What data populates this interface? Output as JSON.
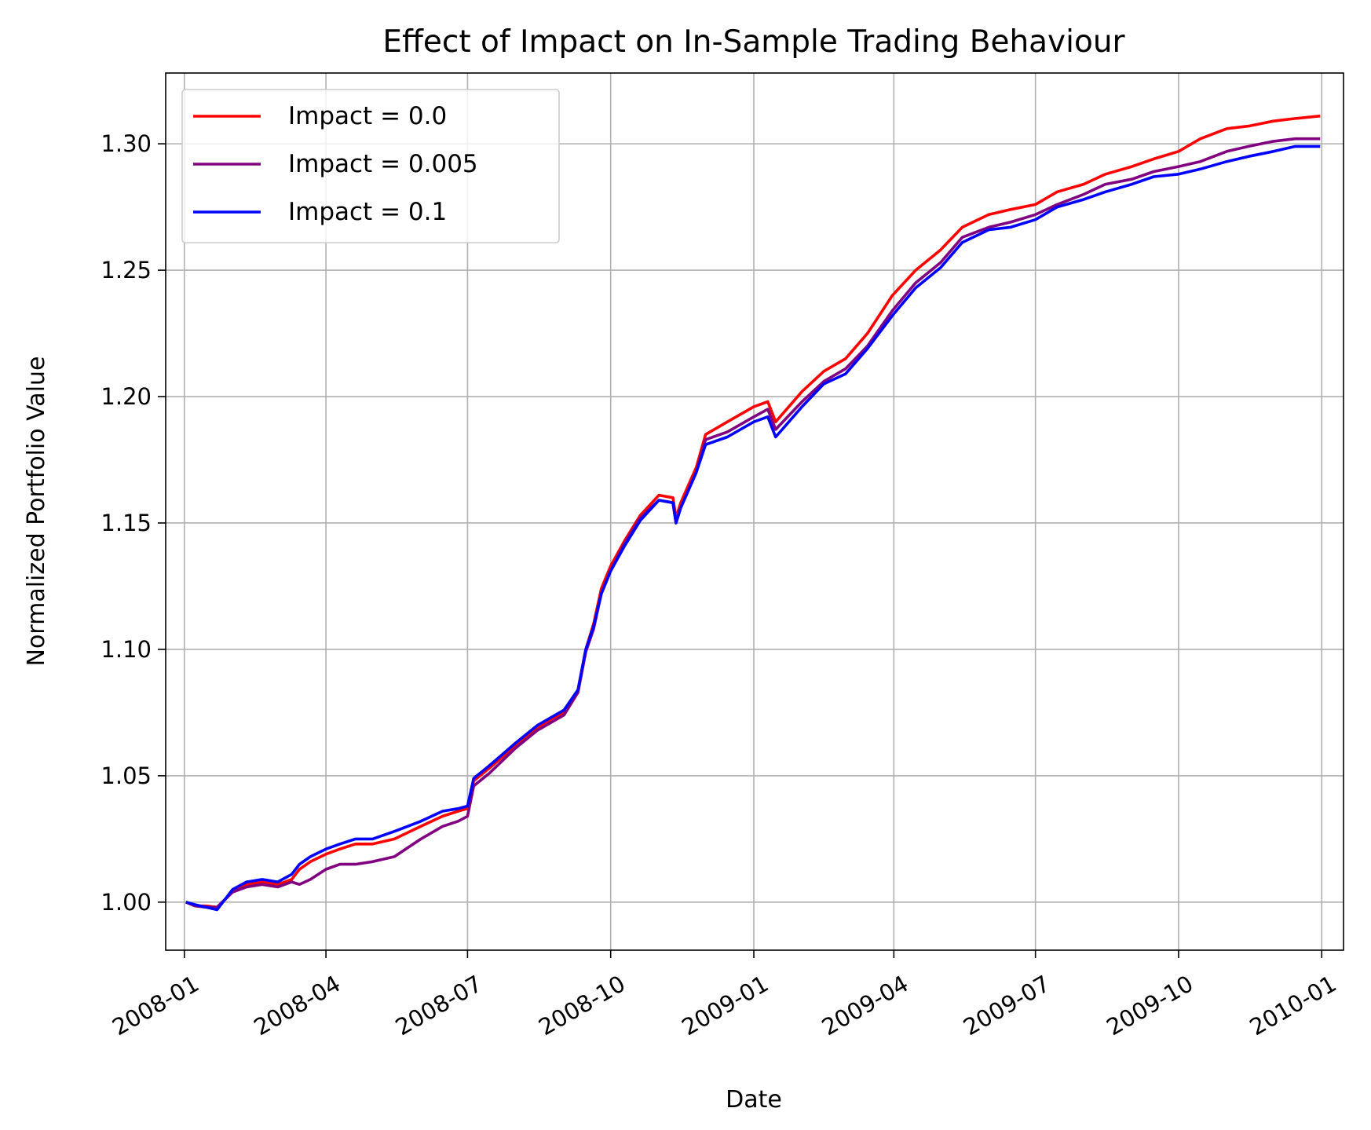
{
  "chart_data": {
    "type": "line",
    "title": "Effect of Impact on In-Sample Trading Behaviour",
    "xlabel": "Date",
    "ylabel": "Normalized Portfolio Value",
    "xlim": [
      "2007-12-20",
      "2010-01-15"
    ],
    "ylim": [
      0.981,
      1.328
    ],
    "x_ticks": [
      "2008-01",
      "2008-04",
      "2008-07",
      "2008-10",
      "2009-01",
      "2009-04",
      "2009-07",
      "2009-10",
      "2010-01"
    ],
    "x_tick_dates": [
      "2008-01-01",
      "2008-04-01",
      "2008-07-01",
      "2008-10-01",
      "2009-01-01",
      "2009-04-01",
      "2009-07-01",
      "2009-10-01",
      "2010-01-01"
    ],
    "x_tick_rotation": 30,
    "y_ticks": [
      "1.00",
      "1.05",
      "1.10",
      "1.15",
      "1.20",
      "1.25",
      "1.30"
    ],
    "y_tick_values": [
      1.0,
      1.05,
      1.1,
      1.15,
      1.2,
      1.25,
      1.3
    ],
    "grid": true,
    "legend_position": "top-left",
    "x": [
      "2008-01-02",
      "2008-01-08",
      "2008-01-15",
      "2008-01-22",
      "2008-02-01",
      "2008-02-10",
      "2008-02-20",
      "2008-03-01",
      "2008-03-10",
      "2008-03-15",
      "2008-03-22",
      "2008-04-01",
      "2008-04-10",
      "2008-04-20",
      "2008-05-01",
      "2008-05-15",
      "2008-06-01",
      "2008-06-15",
      "2008-06-25",
      "2008-07-01",
      "2008-07-05",
      "2008-07-15",
      "2008-08-01",
      "2008-08-15",
      "2008-09-01",
      "2008-09-10",
      "2008-09-15",
      "2008-09-20",
      "2008-09-25",
      "2008-10-01",
      "2008-10-10",
      "2008-10-20",
      "2008-11-01",
      "2008-11-10",
      "2008-11-12",
      "2008-11-15",
      "2008-11-25",
      "2008-12-01",
      "2008-12-15",
      "2009-01-01",
      "2009-01-10",
      "2009-01-15",
      "2009-02-01",
      "2009-02-15",
      "2009-03-01",
      "2009-03-15",
      "2009-03-31",
      "2009-04-15",
      "2009-05-01",
      "2009-05-15",
      "2009-06-01",
      "2009-06-15",
      "2009-07-01",
      "2009-07-15",
      "2009-08-01",
      "2009-08-15",
      "2009-09-01",
      "2009-09-15",
      "2009-10-01",
      "2009-10-15",
      "2009-11-01",
      "2009-11-15",
      "2009-12-01",
      "2009-12-15",
      "2009-12-31"
    ],
    "series": [
      {
        "name": "Impact = 0.0",
        "color": "#ff0000",
        "values": [
          1.0,
          0.9985,
          0.9985,
          0.998,
          1.004,
          1.007,
          1.008,
          1.007,
          1.009,
          1.013,
          1.016,
          1.019,
          1.021,
          1.023,
          1.023,
          1.025,
          1.03,
          1.034,
          1.036,
          1.037,
          1.048,
          1.053,
          1.062,
          1.069,
          1.075,
          1.084,
          1.1,
          1.11,
          1.124,
          1.133,
          1.143,
          1.153,
          1.161,
          1.16,
          1.152,
          1.158,
          1.172,
          1.185,
          1.19,
          1.196,
          1.198,
          1.19,
          1.202,
          1.21,
          1.215,
          1.225,
          1.24,
          1.25,
          1.258,
          1.267,
          1.272,
          1.274,
          1.276,
          1.281,
          1.284,
          1.288,
          1.291,
          1.294,
          1.297,
          1.302,
          1.306,
          1.307,
          1.309,
          1.31,
          1.311
        ]
      },
      {
        "name": "Impact = 0.005",
        "color": "#800080",
        "values": [
          1.0,
          0.9985,
          0.998,
          0.998,
          1.004,
          1.006,
          1.007,
          1.006,
          1.008,
          1.007,
          1.009,
          1.013,
          1.015,
          1.015,
          1.016,
          1.018,
          1.025,
          1.03,
          1.032,
          1.034,
          1.046,
          1.051,
          1.061,
          1.068,
          1.074,
          1.083,
          1.099,
          1.108,
          1.122,
          1.131,
          1.142,
          1.152,
          1.159,
          1.158,
          1.15,
          1.156,
          1.17,
          1.183,
          1.186,
          1.192,
          1.195,
          1.187,
          1.198,
          1.206,
          1.211,
          1.22,
          1.234,
          1.245,
          1.253,
          1.263,
          1.267,
          1.269,
          1.272,
          1.276,
          1.28,
          1.284,
          1.286,
          1.289,
          1.291,
          1.293,
          1.297,
          1.299,
          1.301,
          1.302,
          1.302
        ]
      },
      {
        "name": "Impact = 0.1",
        "color": "#0000ff",
        "values": [
          1.0,
          0.999,
          0.998,
          0.997,
          1.005,
          1.008,
          1.009,
          1.008,
          1.011,
          1.015,
          1.018,
          1.021,
          1.023,
          1.025,
          1.025,
          1.028,
          1.032,
          1.036,
          1.037,
          1.038,
          1.049,
          1.054,
          1.063,
          1.07,
          1.076,
          1.084,
          1.1,
          1.109,
          1.122,
          1.131,
          1.141,
          1.151,
          1.159,
          1.158,
          1.15,
          1.156,
          1.17,
          1.181,
          1.184,
          1.19,
          1.192,
          1.184,
          1.196,
          1.205,
          1.209,
          1.219,
          1.232,
          1.243,
          1.251,
          1.261,
          1.266,
          1.267,
          1.27,
          1.275,
          1.278,
          1.281,
          1.284,
          1.287,
          1.288,
          1.29,
          1.293,
          1.295,
          1.297,
          1.299,
          1.299
        ]
      }
    ]
  }
}
